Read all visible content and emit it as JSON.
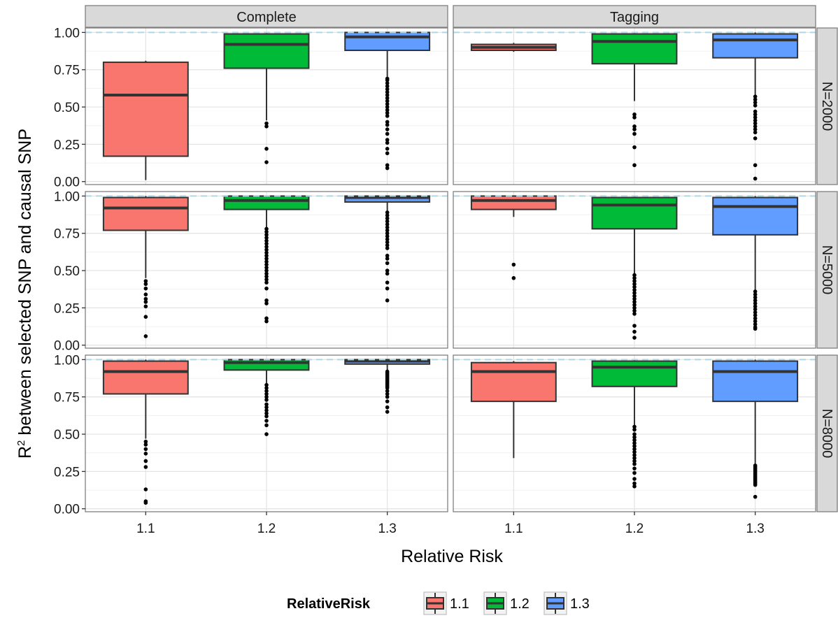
{
  "chart_data": {
    "type": "box",
    "xlabel": "Relative Risk",
    "ylabel_main": "R",
    "ylabel_sup": "2",
    "ylabel_rest": " between selected SNP and causal SNP",
    "categories": [
      "1.1",
      "1.2",
      "1.3"
    ],
    "col_facets": [
      "Complete",
      "Tagging"
    ],
    "row_facets": [
      "N=2000",
      "N=5000",
      "N=8000"
    ],
    "ylim": [
      -0.02,
      1.03
    ],
    "y_ticks": [
      "0.00",
      "0.25",
      "0.50",
      "0.75",
      "1.00"
    ],
    "y_tick_values": [
      0,
      0.25,
      0.5,
      0.75,
      1.0
    ],
    "reference_line": 1.0,
    "colors": {
      "1.1": "#F8766D",
      "1.2": "#00BA38",
      "1.3": "#619CFF",
      "ref_line": "#ADD8E6"
    },
    "legend": {
      "title": "RelativeRisk",
      "entries": [
        "1.1",
        "1.2",
        "1.3"
      ],
      "position": "bottom"
    },
    "panels": [
      {
        "row": "N=2000",
        "col": "Complete",
        "boxes": [
          {
            "category": "1.1",
            "min": 0.01,
            "q1": 0.17,
            "median": 0.58,
            "q3": 0.8,
            "max": 0.81,
            "outliers": []
          },
          {
            "category": "1.2",
            "min": 0.41,
            "q1": 0.76,
            "median": 0.92,
            "q3": 0.99,
            "max": 1.0,
            "outliers": [
              0.39,
              0.37,
              0.22,
              0.13
            ]
          },
          {
            "category": "1.3",
            "min": 0.7,
            "q1": 0.88,
            "median": 0.97,
            "q3": 1.0,
            "max": 1.0,
            "outliers": [
              0.69,
              0.68,
              0.66,
              0.64,
              0.62,
              0.6,
              0.58,
              0.56,
              0.54,
              0.52,
              0.5,
              0.48,
              0.46,
              0.44,
              0.4,
              0.38,
              0.35,
              0.32,
              0.28,
              0.26,
              0.22,
              0.19,
              0.11,
              0.09
            ]
          }
        ]
      },
      {
        "row": "N=2000",
        "col": "Tagging",
        "boxes": [
          {
            "category": "1.1",
            "min": 0.87,
            "q1": 0.88,
            "median": 0.9,
            "q3": 0.92,
            "max": 0.93,
            "outliers": []
          },
          {
            "category": "1.2",
            "min": 0.54,
            "q1": 0.79,
            "median": 0.94,
            "q3": 0.99,
            "max": 1.0,
            "outliers": [
              0.45,
              0.43,
              0.37,
              0.35,
              0.32,
              0.23,
              0.11
            ]
          },
          {
            "category": "1.3",
            "min": 0.58,
            "q1": 0.83,
            "median": 0.95,
            "q3": 0.99,
            "max": 1.0,
            "outliers": [
              0.57,
              0.55,
              0.53,
              0.51,
              0.47,
              0.45,
              0.43,
              0.41,
              0.39,
              0.37,
              0.35,
              0.33,
              0.29,
              0.11,
              0.02
            ]
          }
        ]
      },
      {
        "row": "N=5000",
        "col": "Complete",
        "boxes": [
          {
            "category": "1.1",
            "min": 0.45,
            "q1": 0.77,
            "median": 0.92,
            "q3": 0.99,
            "max": 1.0,
            "outliers": [
              0.43,
              0.41,
              0.38,
              0.34,
              0.31,
              0.29,
              0.26,
              0.19,
              0.06
            ]
          },
          {
            "category": "1.2",
            "min": 0.79,
            "q1": 0.91,
            "median": 0.97,
            "q3": 1.0,
            "max": 1.0,
            "outliers": [
              0.78,
              0.76,
              0.74,
              0.72,
              0.7,
              0.68,
              0.66,
              0.64,
              0.62,
              0.6,
              0.58,
              0.56,
              0.54,
              0.52,
              0.5,
              0.48,
              0.46,
              0.44,
              0.42,
              0.38,
              0.3,
              0.28,
              0.18,
              0.16
            ]
          },
          {
            "category": "1.3",
            "min": 0.9,
            "q1": 0.96,
            "median": 0.99,
            "q3": 1.0,
            "max": 1.0,
            "outliers": [
              0.89,
              0.87,
              0.85,
              0.83,
              0.81,
              0.79,
              0.77,
              0.75,
              0.73,
              0.71,
              0.69,
              0.67,
              0.65,
              0.6,
              0.58,
              0.55,
              0.5,
              0.48,
              0.42,
              0.38,
              0.3
            ]
          }
        ]
      },
      {
        "row": "N=5000",
        "col": "Tagging",
        "boxes": [
          {
            "category": "1.1",
            "min": 0.86,
            "q1": 0.91,
            "median": 0.97,
            "q3": 1.0,
            "max": 1.0,
            "outliers": [
              0.54,
              0.45
            ]
          },
          {
            "category": "1.2",
            "min": 0.48,
            "q1": 0.78,
            "median": 0.94,
            "q3": 0.99,
            "max": 1.0,
            "outliers": [
              0.47,
              0.45,
              0.43,
              0.41,
              0.39,
              0.37,
              0.35,
              0.33,
              0.31,
              0.29,
              0.27,
              0.25,
              0.23,
              0.21,
              0.13,
              0.09,
              0.05
            ]
          },
          {
            "category": "1.3",
            "min": 0.37,
            "q1": 0.74,
            "median": 0.93,
            "q3": 0.99,
            "max": 1.0,
            "outliers": [
              0.36,
              0.34,
              0.32,
              0.3,
              0.28,
              0.26,
              0.24,
              0.22,
              0.2,
              0.18,
              0.16,
              0.14,
              0.12,
              0.11
            ]
          }
        ]
      },
      {
        "row": "N=8000",
        "col": "Complete",
        "boxes": [
          {
            "category": "1.1",
            "min": 0.47,
            "q1": 0.77,
            "median": 0.92,
            "q3": 0.99,
            "max": 1.0,
            "outliers": [
              0.45,
              0.43,
              0.4,
              0.37,
              0.32,
              0.28,
              0.13,
              0.05,
              0.04
            ]
          },
          {
            "category": "1.2",
            "min": 0.84,
            "q1": 0.93,
            "median": 0.98,
            "q3": 1.0,
            "max": 1.0,
            "outliers": [
              0.83,
              0.81,
              0.79,
              0.77,
              0.75,
              0.73,
              0.7,
              0.68,
              0.66,
              0.64,
              0.62,
              0.59,
              0.56,
              0.5
            ]
          },
          {
            "category": "1.3",
            "min": 0.93,
            "q1": 0.97,
            "median": 0.99,
            "q3": 1.0,
            "max": 1.0,
            "outliers": [
              0.92,
              0.91,
              0.9,
              0.89,
              0.88,
              0.87,
              0.86,
              0.85,
              0.84,
              0.83,
              0.82,
              0.81,
              0.79,
              0.77,
              0.75,
              0.72,
              0.68,
              0.65
            ]
          }
        ]
      },
      {
        "row": "N=8000",
        "col": "Tagging",
        "boxes": [
          {
            "category": "1.1",
            "min": 0.34,
            "q1": 0.72,
            "median": 0.92,
            "q3": 0.98,
            "max": 0.99,
            "outliers": []
          },
          {
            "category": "1.2",
            "min": 0.56,
            "q1": 0.82,
            "median": 0.95,
            "q3": 0.99,
            "max": 1.0,
            "outliers": [
              0.55,
              0.53,
              0.5,
              0.48,
              0.46,
              0.44,
              0.42,
              0.4,
              0.38,
              0.36,
              0.34,
              0.32,
              0.3,
              0.27,
              0.24,
              0.2,
              0.17,
              0.15
            ]
          },
          {
            "category": "1.3",
            "min": 0.3,
            "q1": 0.72,
            "median": 0.92,
            "q3": 0.99,
            "max": 1.0,
            "outliers": [
              0.29,
              0.28,
              0.27,
              0.26,
              0.25,
              0.24,
              0.23,
              0.22,
              0.21,
              0.2,
              0.19,
              0.18,
              0.17,
              0.16,
              0.08
            ]
          }
        ]
      }
    ]
  }
}
